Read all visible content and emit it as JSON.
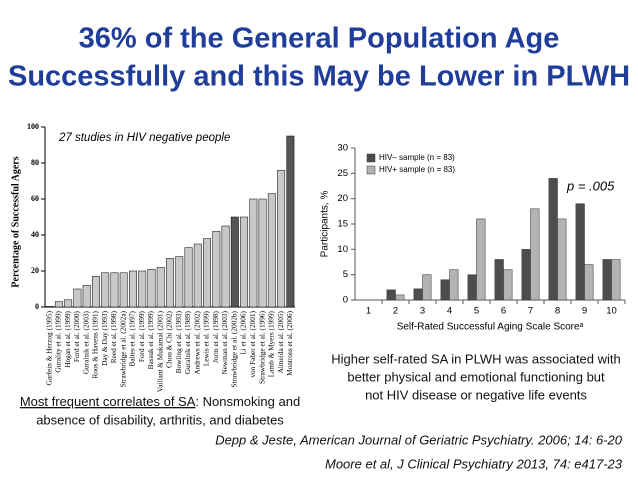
{
  "title_lines": [
    "36% of the General Population Age",
    "Successfully and this May be Lower in PLWH"
  ],
  "left_caption": [
    "Most frequent correlates of SA",
    ": Nonsmoking and",
    "absence of disability, arthritis, and diabetes"
  ],
  "right_caption": [
    "Higher self-rated SA in PLWH was associated with",
    "better physical and emotional functioning but",
    "not HIV disease or negative life events"
  ],
  "citations": [
    "Depp & Jeste, American Journal of Geriatric Psychiatry. 2006; 14: 6-20",
    "Moore et al, J Clinical Psychiatry 2013, 74: e417-23"
  ],
  "chart_data": [
    {
      "type": "bar",
      "annotation": "27 studies in HIV negative people",
      "ylabel": "Percentage of Successful Agers",
      "categories": [
        "Garfein & Herzog (1995)",
        "Gurality et al. (1999)",
        "Hogan et al. (1999)",
        "Ford et al. (2000)",
        "Guralnik et al. (2003)",
        "Roos & Havens (1991)",
        "Day & Day (1993)",
        "Reed et al. (1998)",
        "Strawbridge et al. (2002a)",
        "Baltes et al. (1997)",
        "Ford et al. (1999)",
        "Bassuk et al. (1999)",
        "Vaillant & Mukamal (2001)",
        "Chou & Chi (2002)",
        "Bowling et al. (1993)",
        "Guralnik et al. (1989)",
        "Andrews et al. (2002)",
        "Lewis et al. (1999)",
        "Jorm et al. (1998)",
        "Newman et al. (2003)",
        "Strawbridge et al. (2002b)",
        "Li et al. (2006)",
        "von Faber et al. (2001)",
        "Strawbridge et al. (1996)",
        "Lamb & Myers (1999)",
        "Almeida et al. (2005)",
        "Montross et al. (2006)"
      ],
      "values": [
        0.4,
        3,
        4,
        10,
        12,
        17,
        19,
        19,
        19,
        20,
        20,
        21,
        22,
        27,
        28,
        33,
        35,
        38,
        42,
        45,
        50,
        50,
        60,
        60,
        63,
        76,
        95
      ],
      "colors": [
        "#c8c8c8",
        "#c8c8c8",
        "#c8c8c8",
        "#c8c8c8",
        "#c8c8c8",
        "#c8c8c8",
        "#c8c8c8",
        "#c8c8c8",
        "#c8c8c8",
        "#c8c8c8",
        "#c8c8c8",
        "#c8c8c8",
        "#c8c8c8",
        "#c8c8c8",
        "#c8c8c8",
        "#c8c8c8",
        "#c8c8c8",
        "#c8c8c8",
        "#c8c8c8",
        "#c8c8c8",
        "#555555",
        "#c8c8c8",
        "#c8c8c8",
        "#c8c8c8",
        "#c8c8c8",
        "#c8c8c8",
        "#555555"
      ],
      "ylim": [
        0,
        100
      ],
      "yticks": [
        0,
        20,
        40,
        60,
        80,
        100
      ]
    },
    {
      "type": "grouped_bar",
      "annotation": "p = .005",
      "ylabel": "Participants, %",
      "xlabel": "Self-Rated Successful Aging Scale Scoreᵃ",
      "categories": [
        "1",
        "2",
        "3",
        "4",
        "5",
        "6",
        "7",
        "8",
        "9",
        "10"
      ],
      "series": [
        {
          "name": "HIV– sample (n = 83)",
          "color": "#4d4d4d",
          "values": [
            null,
            2,
            2.2,
            4,
            5,
            8,
            10,
            24,
            19,
            8
          ]
        },
        {
          "name": "HIV+ sample (n = 83)",
          "color": "#b3b3b3",
          "values": [
            null,
            1,
            5,
            6,
            16,
            6,
            18,
            16,
            7,
            8
          ]
        }
      ],
      "ylim": [
        0,
        30
      ],
      "yticks": [
        0,
        5,
        10,
        15,
        20,
        25,
        30
      ],
      "legend": "upper-left"
    }
  ]
}
